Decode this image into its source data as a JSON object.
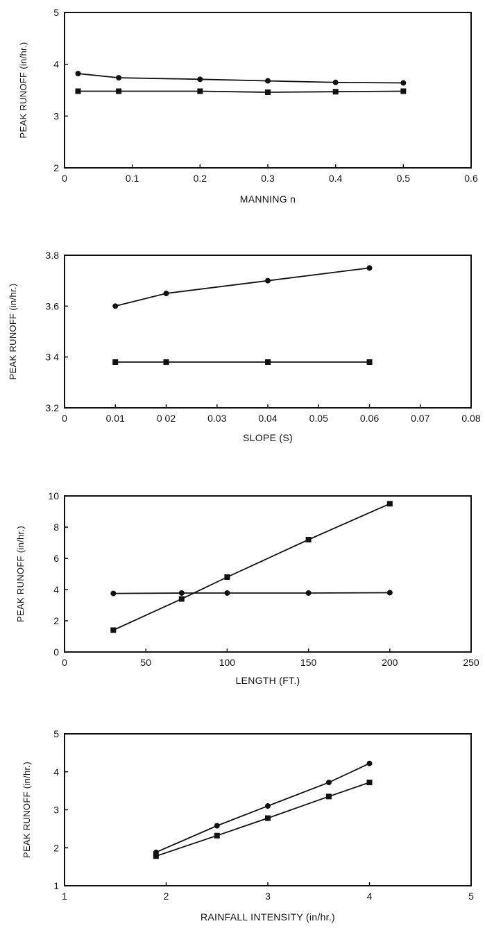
{
  "chart_data": [
    {
      "type": "line",
      "title": "",
      "xlabel": "MANNING  n",
      "ylabel": "PEAK RUNOFF (in/hr.)",
      "xlim": [
        0,
        0.6
      ],
      "ylim": [
        2,
        5
      ],
      "xticks": [
        "0",
        "0.1",
        "0.2",
        "0.3",
        "0.4",
        "0.5",
        "0.6"
      ],
      "yticks": [
        "2",
        "3",
        "4",
        "5"
      ],
      "grid": false,
      "series": [
        {
          "marker": "circle",
          "x": [
            0.02,
            0.08,
            0.2,
            0.3,
            0.4,
            0.5
          ],
          "values": [
            3.82,
            3.74,
            3.71,
            3.68,
            3.65,
            3.64
          ]
        },
        {
          "marker": "square",
          "x": [
            0.02,
            0.08,
            0.2,
            0.3,
            0.4,
            0.5
          ],
          "values": [
            3.48,
            3.48,
            3.48,
            3.46,
            3.47,
            3.48
          ]
        }
      ]
    },
    {
      "type": "line",
      "title": "",
      "xlabel": "SLOPE (S)",
      "ylabel": "PEAK RUNOFF (in/hr.)",
      "xlim": [
        0,
        0.08
      ],
      "ylim": [
        3.2,
        3.8
      ],
      "xticks": [
        "0",
        "0.01",
        "0 02",
        "0.03",
        "0.04",
        "0.05",
        "0.06",
        "0.07",
        "0.08"
      ],
      "yticks": [
        "3.2",
        "3 4",
        "3.6",
        "3.8"
      ],
      "grid": false,
      "series": [
        {
          "marker": "circle",
          "x": [
            0.01,
            0.02,
            0.04,
            0.06
          ],
          "values": [
            3.6,
            3.65,
            3.7,
            3.75
          ]
        },
        {
          "marker": "square",
          "x": [
            0.01,
            0.02,
            0.04,
            0.06
          ],
          "values": [
            3.38,
            3.38,
            3.38,
            3.38
          ]
        }
      ]
    },
    {
      "type": "line",
      "title": "",
      "xlabel": "LENGTH (FT.)",
      "ylabel": "PEAK RUNOFF (in/hr.)",
      "xlim": [
        0,
        250
      ],
      "ylim": [
        0,
        10
      ],
      "xticks": [
        "0",
        "50",
        "100",
        "150",
        "200",
        "250"
      ],
      "yticks": [
        "0",
        "2",
        "4",
        "6",
        "8",
        "10"
      ],
      "grid": false,
      "series": [
        {
          "marker": "circle",
          "x": [
            30,
            72,
            100,
            150,
            200
          ],
          "values": [
            3.75,
            3.78,
            3.78,
            3.78,
            3.8
          ]
        },
        {
          "marker": "square",
          "x": [
            30,
            72,
            100,
            150,
            200
          ],
          "values": [
            1.4,
            3.4,
            4.8,
            7.2,
            9.5
          ]
        }
      ]
    },
    {
      "type": "line",
      "title": "",
      "xlabel": "RAINFALL INTENSITY  (in/hr.)",
      "ylabel": "PEAK RUNOFF (in/hr.)",
      "xlim": [
        1,
        5
      ],
      "ylim": [
        1,
        5
      ],
      "xticks": [
        "1",
        "2",
        "3",
        "4",
        "5"
      ],
      "yticks": [
        "1",
        "2",
        "3",
        "4",
        "5"
      ],
      "grid": false,
      "series": [
        {
          "marker": "circle",
          "x": [
            1.9,
            2.5,
            3.0,
            3.6,
            4.0
          ],
          "values": [
            1.88,
            2.58,
            3.1,
            3.72,
            4.22
          ]
        },
        {
          "marker": "square",
          "x": [
            1.9,
            2.5,
            3.0,
            3.6,
            4.0
          ],
          "values": [
            1.78,
            2.32,
            2.78,
            3.35,
            3.72
          ]
        }
      ]
    }
  ]
}
